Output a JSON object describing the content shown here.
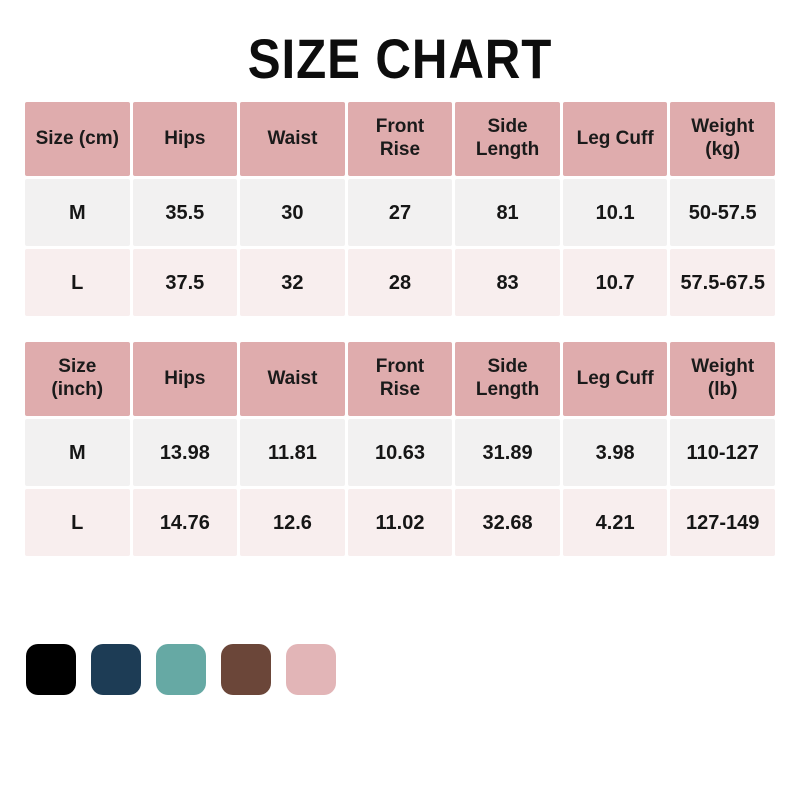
{
  "title": "SIZE CHART",
  "colors": {
    "header_bg": "#dfacad",
    "row_m_bg": "#f2f1f1",
    "row_l_bg": "#f8eeee",
    "gap": "#ffffff",
    "text": "#161616"
  },
  "chart_data": [
    {
      "type": "table",
      "title": "Size chart in centimeters / kilograms",
      "columns": [
        "Size (cm)",
        "Hips",
        "Waist",
        "Front Rise",
        "Side Length",
        "Leg Cuff",
        "Weight (kg)"
      ],
      "rows": [
        [
          "M",
          "35.5",
          "30",
          "27",
          "81",
          "10.1",
          "50-57.5"
        ],
        [
          "L",
          "37.5",
          "32",
          "28",
          "83",
          "10.7",
          "57.5-67.5"
        ]
      ]
    },
    {
      "type": "table",
      "title": "Size chart in inches / pounds",
      "columns": [
        "Size (inch)",
        "Hips",
        "Waist",
        "Front Rise",
        "Side Length",
        "Leg Cuff",
        "Weight (lb)"
      ],
      "rows": [
        [
          "M",
          "13.98",
          "11.81",
          "10.63",
          "31.89",
          "3.98",
          "110-127"
        ],
        [
          "L",
          "14.76",
          "12.6",
          "11.02",
          "32.68",
          "4.21",
          "127-149"
        ]
      ]
    }
  ],
  "swatches": [
    {
      "name": "black",
      "color": "#000000"
    },
    {
      "name": "navy-blue",
      "color": "#1d3c55"
    },
    {
      "name": "teal",
      "color": "#66a9a4"
    },
    {
      "name": "brown",
      "color": "#6b4639"
    },
    {
      "name": "dusty-pink",
      "color": "#e2b5b7"
    }
  ]
}
